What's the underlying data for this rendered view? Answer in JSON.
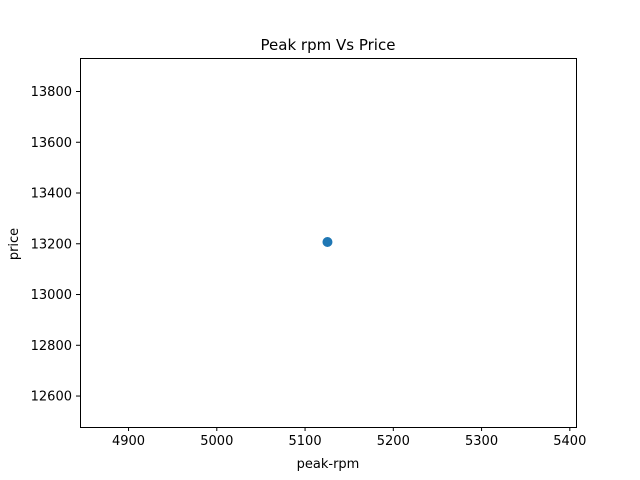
{
  "chart_data": {
    "type": "scatter",
    "title": "Peak rpm Vs Price",
    "xlabel": "peak-rpm",
    "ylabel": "price",
    "xlim": [
      4845,
      5407
    ],
    "ylim": [
      12478,
      13932
    ],
    "xticks": [
      4900,
      5000,
      5100,
      5200,
      5300,
      5400
    ],
    "yticks": [
      12600,
      12800,
      13000,
      13200,
      13400,
      13600,
      13800
    ],
    "grid": false,
    "marker_color": "#1f77b4",
    "points": [
      {
        "x": 5125.4,
        "y": 13207
      }
    ]
  }
}
